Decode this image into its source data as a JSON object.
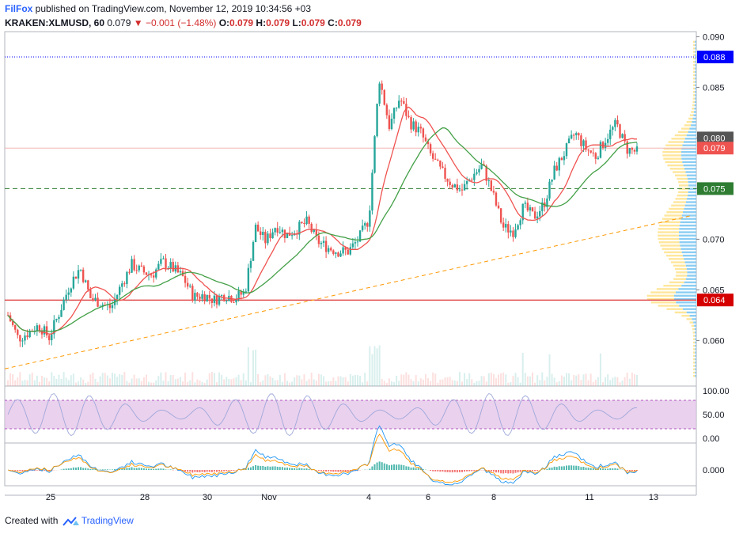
{
  "header": {
    "brand": "FilFox",
    "published": " published on TradingView.com, November 12, 2019 10:34:56 +03",
    "symbol": "KRAKEN:XLMUSD, 60",
    "last": "0.079",
    "change": "▼ −0.001 (−1.48%)",
    "o_label": "O:",
    "o": "0.079",
    "h_label": "H:",
    "h": "0.079",
    "l_label": "L:",
    "l": "0.079",
    "c_label": "C:",
    "c": "0.079"
  },
  "footer": {
    "created_with": "Created with",
    "brand": "TradingView"
  },
  "colors": {
    "up": "#26a69a",
    "down": "#ef5350",
    "ma_fast": "#ef5350",
    "ma_slow": "#43a047",
    "trend": "#ff9800",
    "level_green": "#2e7d32",
    "level_blue": "#0000ff",
    "level_red": "#d50000",
    "rsi_band": "#e1bee7",
    "profile_up": "#6ec1f0",
    "profile_down": "#ffe082"
  },
  "chart_data": {
    "type": "candlestick",
    "ylim": [
      0.0555,
      0.0905
    ],
    "y_ticks": [
      "0.090",
      "0.085",
      "0.080",
      "0.075",
      "0.070",
      "0.065",
      "0.060"
    ],
    "x_ticks": [
      "25",
      "28",
      "30",
      "Nov",
      "4",
      "6",
      "8",
      "11",
      "13"
    ],
    "price_labels": [
      {
        "value": 0.088,
        "text": "0.088",
        "color": "#0000ff"
      },
      {
        "value": 0.08,
        "text": "0.080",
        "color": "#555555"
      },
      {
        "value": 0.079,
        "text": "0.079",
        "color": "#ef5350"
      },
      {
        "value": 0.075,
        "text": "0.075",
        "color": "#2e7d32"
      },
      {
        "value": 0.064,
        "text": "0.064",
        "color": "#d50000"
      }
    ],
    "horizontal_levels": [
      {
        "value": 0.088,
        "style": "dotted",
        "color": "#0000ff"
      },
      {
        "value": 0.075,
        "style": "dashed",
        "color": "#2e7d32"
      },
      {
        "value": 0.064,
        "style": "solid",
        "color": "#d50000"
      },
      {
        "value": 0.079,
        "style": "solid",
        "color": "#f4b6b6"
      }
    ],
    "trendline": {
      "start": 0.0572,
      "end": 0.0723
    },
    "close_path": [
      0.0625,
      0.0602,
      0.0608,
      0.0615,
      0.0603,
      0.0628,
      0.0655,
      0.0672,
      0.0642,
      0.0637,
      0.0632,
      0.0655,
      0.0675,
      0.0668,
      0.0665,
      0.0678,
      0.0671,
      0.0662,
      0.0643,
      0.0645,
      0.064,
      0.0645,
      0.0642,
      0.0648,
      0.0712,
      0.0698,
      0.0714,
      0.0704,
      0.071,
      0.0717,
      0.0698,
      0.0692,
      0.0688,
      0.0688,
      0.07,
      0.072,
      0.086,
      0.0811,
      0.084,
      0.0815,
      0.0806,
      0.0783,
      0.0767,
      0.0755,
      0.0748,
      0.0762,
      0.0773,
      0.0745,
      0.0712,
      0.0708,
      0.0732,
      0.0722,
      0.0735,
      0.0768,
      0.0786,
      0.0805,
      0.079,
      0.0782,
      0.08,
      0.0814,
      0.0789,
      0.0786
    ],
    "rsi": {
      "ticks": [
        "100.00",
        "50.00",
        "0.00"
      ],
      "band": [
        20,
        80
      ]
    },
    "macd": {
      "ticks": [
        "0.000"
      ]
    }
  }
}
